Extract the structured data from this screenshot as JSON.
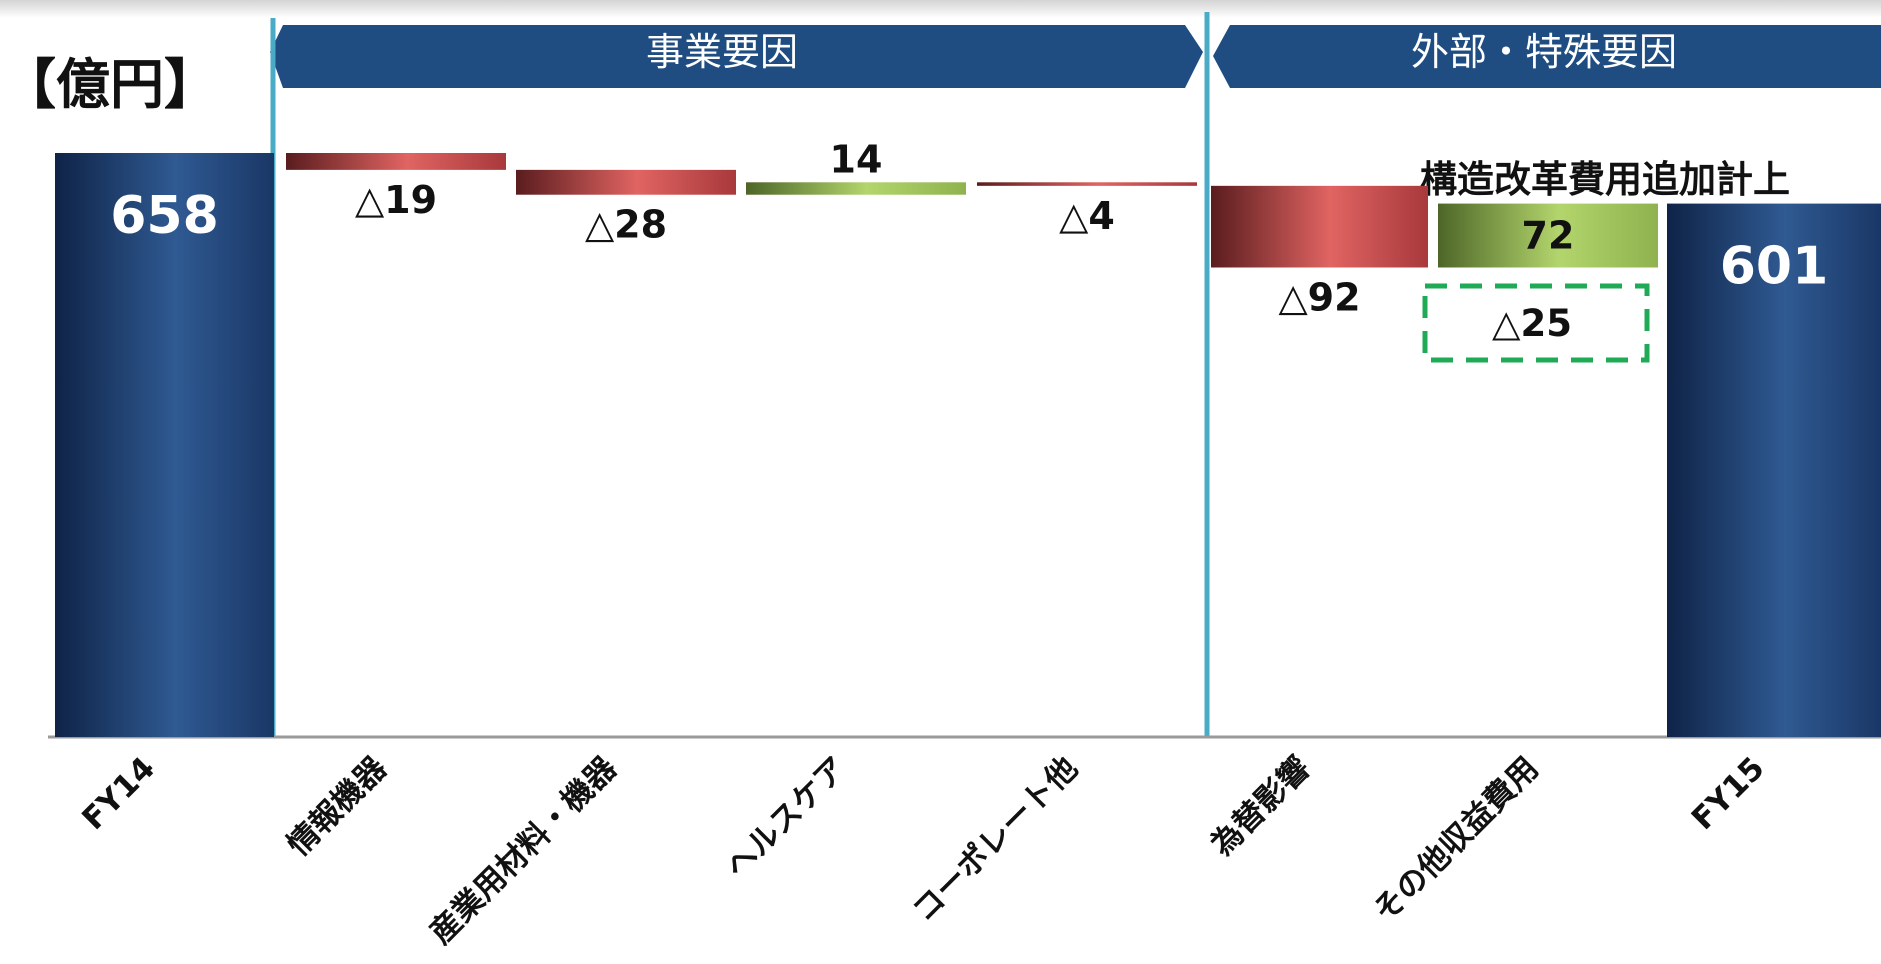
{
  "unit_label": "【億円】",
  "groups": [
    {
      "label": "事業要因"
    },
    {
      "label": "外部・特殊要因"
    }
  ],
  "annotation": "構造改革費用追加計上",
  "colors": {
    "total": "#1f3f73",
    "negative": "#c0474a",
    "positive": "#9cc257",
    "band": "#1f4d82",
    "divider": "#4aabc6",
    "dashed": "#1faa55"
  },
  "chart_data": {
    "type": "waterfall",
    "categories": [
      "FY14",
      "情報機器",
      "産業用材料・機器",
      "ヘルスケア",
      "コーポレート他",
      "為替影響",
      "その他収益費用",
      "FY15"
    ],
    "values": [
      658,
      -19,
      -28,
      14,
      -4,
      -92,
      72,
      601
    ],
    "labels": [
      "658",
      "△19",
      "△28",
      "14",
      "△4",
      "△92",
      "72",
      "601"
    ],
    "kinds": [
      "total",
      "delta",
      "delta",
      "delta",
      "delta",
      "delta",
      "delta",
      "total"
    ],
    "extra_annotation": {
      "category": "その他収益費用",
      "value": -25,
      "label": "△25"
    },
    "ylim": [
      0,
      658
    ]
  }
}
